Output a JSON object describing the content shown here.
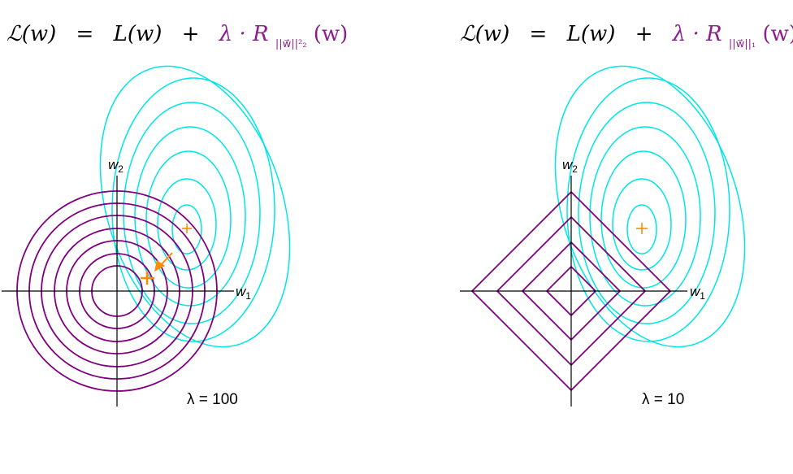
{
  "panels": [
    {
      "formula": {
        "loss_full": "ℒ(w)",
        "equals": "=",
        "loss": "L(w)",
        "plus": "+",
        "reg_prefix": "λ · R",
        "reg_sub": "||w⃗||²₂",
        "reg_arg": "(w)"
      },
      "axis_x_label": "w",
      "axis_x_sub": "1",
      "axis_y_label": "w",
      "axis_y_sub": "2",
      "lambda_label": "λ = 100",
      "regularizer_shape": "circle",
      "has_arrow": true
    },
    {
      "formula": {
        "loss_full": "ℒ(w)",
        "equals": "=",
        "loss": "L(w)",
        "plus": "+",
        "reg_prefix": "λ · R",
        "reg_sub": "||w⃗||₁",
        "reg_arg": "(w)"
      },
      "axis_x_label": "w",
      "axis_x_sub": "1",
      "axis_y_label": "w",
      "axis_y_sub": "2",
      "lambda_label": "λ = 10",
      "regularizer_shape": "diamond",
      "has_arrow": false
    }
  ],
  "colors": {
    "loss_contours": "#00e5e5",
    "reg_contours": "#800080",
    "markers": "#ff8c00",
    "regularizer_text": "#8b1e8b"
  }
}
